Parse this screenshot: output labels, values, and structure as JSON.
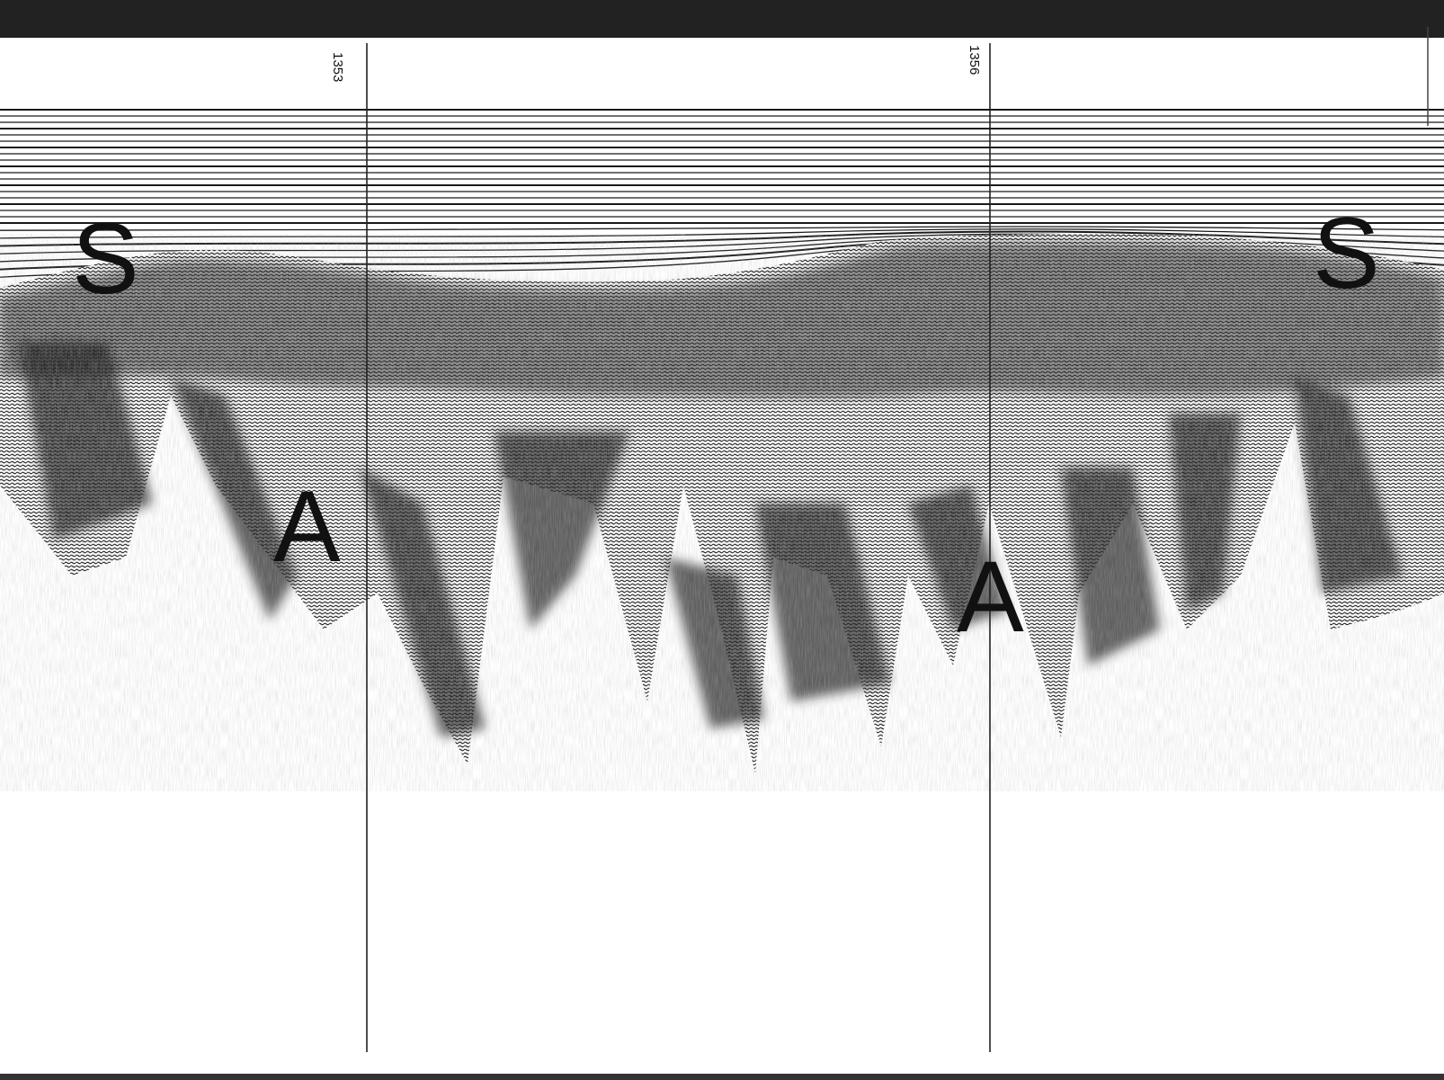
{
  "image": {
    "kind": "seismic reflection profile record",
    "ink_color": "#111111",
    "paper_color": "#ffffff"
  },
  "fix_marks": [
    {
      "label": "1353"
    },
    {
      "label": "1356"
    }
  ],
  "annotations": [
    {
      "text": "S"
    },
    {
      "text": "A"
    },
    {
      "text": "A"
    },
    {
      "text": "S"
    }
  ]
}
